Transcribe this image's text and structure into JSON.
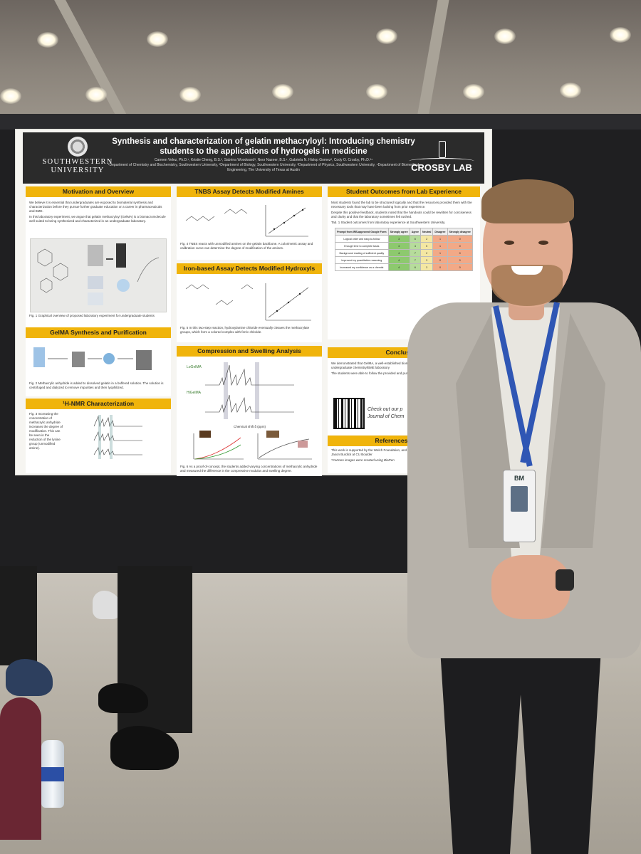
{
  "poster": {
    "university": "SOUTHWESTERN UNIVERSITY",
    "title": "Synthesis and characterization of gelatin methacryloyl: Introducing chemistry students to the applications of hydrogels in medicine",
    "authors": "Carmen Velez, Ph.D.¹, Kristie Cheng, B.S.², Sabrina Woodward³, Noor Nazeer, B.S.¹, Gabriela N. Hislop Gomez², Cody O. Crosby, Ph.D.³⁴",
    "affiliations": "¹Department of Chemistry and Biochemistry, Southwestern University, ²Department of Biology, Southwestern University, ³Department of Physics, Southwestern University, ⁴Department of Biomedical Engineering, The University of Texas at Austin",
    "lab_logo": "CROSBY LAB",
    "sections": {
      "motivation": {
        "title": "Motivation and Overview",
        "bullet1": "We believe it is essential that undergraduates are exposed to biomaterial synthesis and characterization before they pursue further graduate education or a career in pharmaceuticals and BME.",
        "bullet2": "In this laboratory experiment, we argue that gelatin methacryloyl (GelMA) is a biomacromolecule well suited to being synthesized and characterized in an undergraduate laboratory.",
        "fig_caption": "Fig. 1 Graphical overview of proposed laboratory experiment for undergraduate students"
      },
      "synthesis": {
        "title": "GelMA Synthesis and Purification",
        "fig_caption": "Fig. 2 Methacrylic anhydride is added to dissolved gelatin in a buffered solution. The solution is centrifuged and dialyzed to remove impurities and then lyophilized."
      },
      "nmr": {
        "title": "¹H-NMR Characterization",
        "fig_caption": "Fig. 3 Increasing the concentration of methacrylic anhydride increases the degree of modification. This can be seen in the reduction of the lysine group (unmodified amine)."
      },
      "tnbs": {
        "title": "TNBS Assay Detects Modified Amines",
        "fig_caption": "Fig. 4 TNBS reacts with unmodified amines on the gelatin backbone. A colorimetric assay and calibration curve can determine the degree of modification of the amines."
      },
      "iron": {
        "title": "Iron-based Assay Detects Modified Hydroxyls",
        "fig_caption": "Fig. 5 In this two-step reaction, hydroxylamine chloride eventually cleaves the methacrylate groups, which form a colored complex with ferric chloride."
      },
      "compression": {
        "title": "Compression and Swelling Analysis",
        "label_low": "LoGelMA",
        "label_high": "HiGelMA",
        "xaxis": "Chemical shift δ (ppm)",
        "fig_caption": "Fig. 6 As a proof-of-concept, the students added varying concentrations of methacrylic anhydride and measured the difference in the compressive modulus and swelling degree."
      },
      "outcomes": {
        "title": "Student Outcomes from Lab Experience",
        "bullet1": "Most students found the lab to be structured logically and that the resources provided them with the necessary tools that may have been lacking from prior experience.",
        "bullet2": "Despite this positive feedback, students noted that the handouts could be rewritten for conciseness and clarity and that the laboratory sometimes felt rushed.",
        "table_caption": "Tab. 1 Student outcomes from laboratory experience at Southwestern University.",
        "table": {
          "headers": [
            "Prompt from IRB-approved Google Form",
            "Strongly agree",
            "Agree",
            "Neutral",
            "Disagree",
            "Strongly disagree"
          ],
          "rows": [
            [
              "Logical order and easy-to-follow",
              "3",
              "6",
              "2",
              "1",
              "0"
            ],
            [
              "Enough time to complete tasks",
              "4",
              "4",
              "5",
              "1",
              "0"
            ],
            [
              "Background reading of sufficient quality",
              "4",
              "7",
              "2",
              "1",
              "0"
            ],
            [
              "Improved my quantitative reasoning",
              "4",
              "7",
              "3",
              "0",
              "0"
            ],
            [
              "Increased my confidence as a chemist",
              "4",
              "6",
              "3",
              "0",
              "0"
            ]
          ]
        }
      },
      "conclusions": {
        "title": "Conclusions",
        "bullet1": "We demonstrated that GelMA, a well-established biomaterials discipline, is particularly well suited for undergraduate chemistry/BME laboratory",
        "bullet2": "The students were able to follow the provided and purifying this modified polymer.",
        "qr_text": "Check out our p",
        "qr_text2": "Journal of Chem"
      },
      "references": {
        "title": "References and Ack",
        "body": "This work is supported by the Welch Foundation, and Bob and Annie Graham. The provided by Dr. Jason Burdick at CU Boulder",
        "note": "*Cartoon images were created using BioRen"
      }
    }
  },
  "badge": {
    "text": "BM"
  },
  "colors": {
    "section_header": "#f0b40b",
    "poster_header": "#2b2b2b",
    "lanyard": "#2f56b4",
    "jacket": "#b7b2aa"
  }
}
